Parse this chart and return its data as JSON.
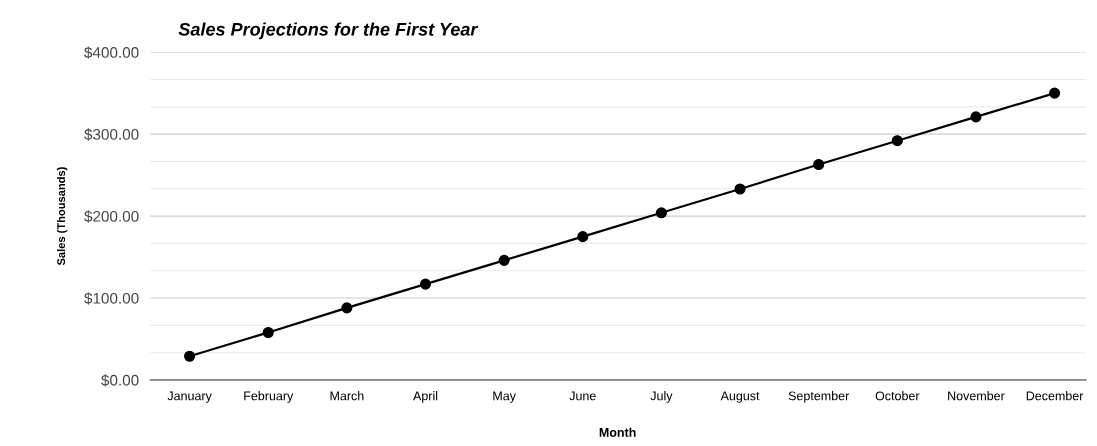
{
  "chart_data": {
    "type": "line",
    "title": "Sales Projections for the First Year",
    "xlabel": "Month",
    "ylabel": "Sales (Thousands)",
    "categories": [
      "January",
      "February",
      "March",
      "April",
      "May",
      "June",
      "July",
      "August",
      "September",
      "October",
      "November",
      "December"
    ],
    "series": [
      {
        "color": "#000000",
        "values": [
          29,
          58,
          88,
          117,
          146,
          175,
          204,
          233,
          263,
          292,
          321,
          350
        ]
      }
    ],
    "ylim": [
      0,
      400
    ],
    "yticks": [
      {
        "value": 0,
        "label": "$0.00"
      },
      {
        "value": 33.3,
        "label": null
      },
      {
        "value": 66.7,
        "label": null
      },
      {
        "value": 100,
        "label": "$100.00"
      },
      {
        "value": 133.3,
        "label": null
      },
      {
        "value": 166.7,
        "label": null
      },
      {
        "value": 200,
        "label": "$200.00"
      },
      {
        "value": 233.3,
        "label": null
      },
      {
        "value": 266.7,
        "label": null
      },
      {
        "value": 300,
        "label": "$300.00"
      },
      {
        "value": 333.3,
        "label": null
      },
      {
        "value": 366.7,
        "label": null
      },
      {
        "value": 400,
        "label": "$400.00"
      }
    ],
    "grid": "y",
    "marker": "circle",
    "line_style": "solid",
    "legend": false
  }
}
